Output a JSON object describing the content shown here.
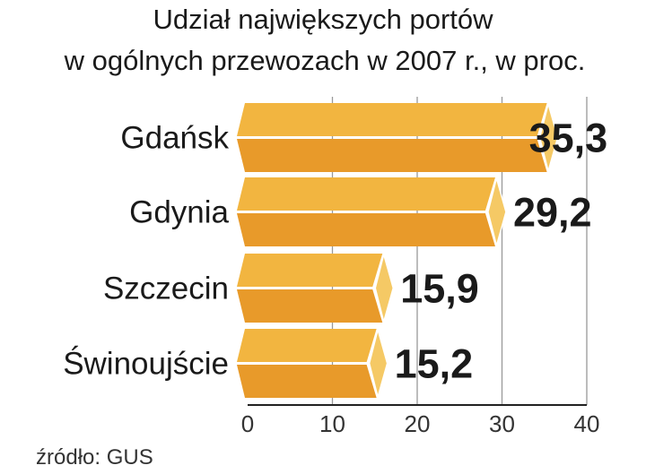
{
  "chart_data": {
    "type": "bar",
    "orientation": "horizontal",
    "title": [
      "Udział największych portów",
      "w ogólnych przewozach w 2007 r., w proc."
    ],
    "categories": [
      "Gdańsk",
      "Gdynia",
      "Szczecin",
      "Świnoujście"
    ],
    "values": [
      35.3,
      29.2,
      15.9,
      15.2
    ],
    "value_labels": [
      "35,3",
      "29,2",
      "15,9",
      "15,2"
    ],
    "xlim": [
      0,
      40
    ],
    "xticks": [
      0,
      10,
      20,
      30,
      40
    ],
    "xtick_labels": [
      "0",
      "10",
      "20",
      "30",
      "40"
    ],
    "source": "źródło: GUS",
    "colors": {
      "top": "#F2B540",
      "bottom": "#E89A2A",
      "cap": "#F5C965",
      "grid": "#999999"
    }
  }
}
